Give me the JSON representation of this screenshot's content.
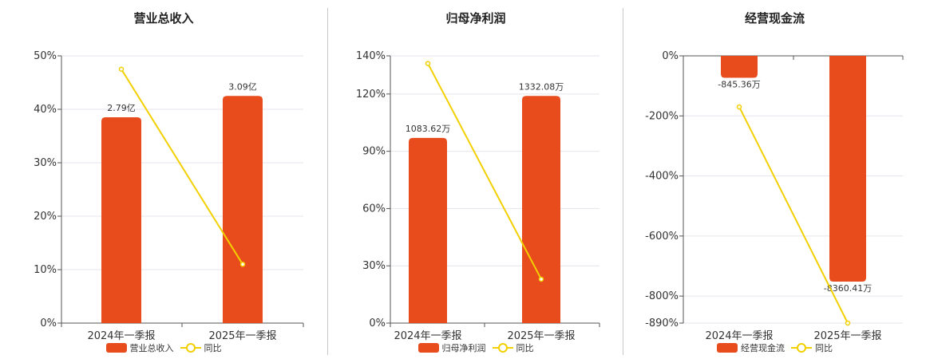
{
  "colors": {
    "bar": "#e84c1c",
    "line": "#f2d000",
    "grid": "#e4e4ec",
    "axis": "#555555"
  },
  "chart_data": [
    {
      "type": "bar",
      "title": "营业总收入",
      "categories": [
        "2024年一季报",
        "2025年一季报"
      ],
      "series": [
        {
          "name": "营业总收入",
          "type": "bar",
          "values": [
            38.5,
            42.5
          ],
          "labels": [
            "2.79亿",
            "3.09亿"
          ]
        },
        {
          "name": "同比",
          "type": "line",
          "values": [
            47.5,
            11
          ]
        }
      ],
      "ylim": [
        0,
        50
      ],
      "yticks": [
        0,
        10,
        20,
        30,
        40,
        50
      ],
      "ytick_labels": [
        "0%",
        "10%",
        "20%",
        "30%",
        "40%",
        "50%"
      ]
    },
    {
      "type": "bar",
      "title": "归母净利润",
      "categories": [
        "2024年一季报",
        "2025年一季报"
      ],
      "series": [
        {
          "name": "归母净利润",
          "type": "bar",
          "values": [
            97,
            119
          ],
          "labels": [
            "1083.62万",
            "1332.08万"
          ]
        },
        {
          "name": "同比",
          "type": "line",
          "values": [
            136,
            23
          ]
        }
      ],
      "ylim": [
        0,
        140
      ],
      "yticks": [
        0,
        30,
        60,
        90,
        120,
        140
      ],
      "ytick_labels": [
        "0%",
        "30%",
        "60%",
        "90%",
        "120%",
        "140%"
      ]
    },
    {
      "type": "bar",
      "title": "经营现金流",
      "categories": [
        "2024年一季报",
        "2025年一季报"
      ],
      "series": [
        {
          "name": "经营现金流",
          "type": "bar",
          "values": [
            -73,
            -752
          ],
          "labels": [
            "-845.36万",
            "-8360.41万"
          ]
        },
        {
          "name": "同比",
          "type": "line",
          "values": [
            -170,
            -890
          ]
        }
      ],
      "ylim": [
        -890,
        0
      ],
      "yticks": [
        0,
        -200,
        -400,
        -600,
        -800,
        -890
      ],
      "ytick_labels": [
        "0%",
        "-200%",
        "-400%",
        "-600%",
        "-800%",
        "-890%"
      ]
    }
  ]
}
